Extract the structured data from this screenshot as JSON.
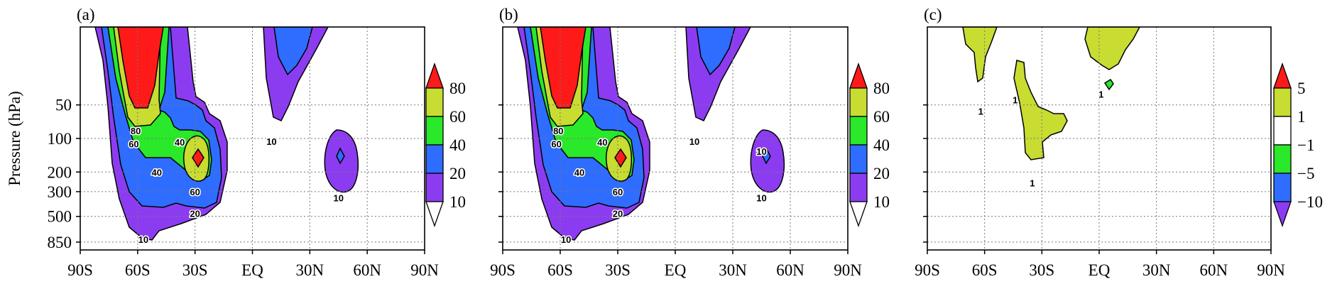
{
  "figure": {
    "ylabel": "Pressure (hPa)"
  },
  "chart_data": [
    {
      "type": "contour",
      "panel_label": "(a)",
      "xlabel": "",
      "ylabel": "Pressure (hPa)",
      "x_ticks": [
        "90S",
        "60S",
        "30S",
        "EQ",
        "30N",
        "60N",
        "90N"
      ],
      "x_range": [
        -90,
        90
      ],
      "y_ticks": [
        50,
        100,
        200,
        300,
        500,
        850
      ],
      "y_scale": "log",
      "y_range": [
        10,
        1000
      ],
      "grid": true,
      "colorbar": {
        "levels": [
          "80",
          "60",
          "40",
          "20",
          "10"
        ],
        "colors": [
          "#ff1a1a",
          "#c8dc32",
          "#2ae82a",
          "#2e6dff",
          "#8c3cf0",
          "#ffffff"
        ],
        "extend": "both"
      },
      "contour_labels": [
        {
          "text": "80",
          "lat": -61,
          "p": 85
        },
        {
          "text": "60",
          "lat": -62,
          "p": 112
        },
        {
          "text": "40",
          "lat": -38,
          "p": 108
        },
        {
          "text": "40",
          "lat": -50,
          "p": 200
        },
        {
          "text": "60",
          "lat": -30,
          "p": 300
        },
        {
          "text": "20",
          "lat": -30,
          "p": 470
        },
        {
          "text": "10",
          "lat": -57,
          "p": 800
        },
        {
          "text": "10",
          "lat": 10,
          "p": 106
        },
        {
          "text": "10",
          "lat": 45,
          "p": 340
        }
      ]
    },
    {
      "type": "contour",
      "panel_label": "(b)",
      "xlabel": "",
      "ylabel": "",
      "x_ticks": [
        "90S",
        "60S",
        "30S",
        "EQ",
        "30N",
        "60N",
        "90N"
      ],
      "x_range": [
        -90,
        90
      ],
      "y_ticks": [
        50,
        100,
        200,
        300,
        500,
        850
      ],
      "y_scale": "log",
      "y_range": [
        10,
        1000
      ],
      "grid": true,
      "colorbar": {
        "levels": [
          "80",
          "60",
          "40",
          "20",
          "10"
        ],
        "colors": [
          "#ff1a1a",
          "#c8dc32",
          "#2ae82a",
          "#2e6dff",
          "#8c3cf0",
          "#ffffff"
        ],
        "extend": "both"
      },
      "contour_labels": [
        {
          "text": "80",
          "lat": -61,
          "p": 85
        },
        {
          "text": "60",
          "lat": -62,
          "p": 112
        },
        {
          "text": "40",
          "lat": -38,
          "p": 108
        },
        {
          "text": "40",
          "lat": -50,
          "p": 200
        },
        {
          "text": "60",
          "lat": -30,
          "p": 300
        },
        {
          "text": "20",
          "lat": -30,
          "p": 470
        },
        {
          "text": "10",
          "lat": -57,
          "p": 800
        },
        {
          "text": "10",
          "lat": 10,
          "p": 106
        },
        {
          "text": "10",
          "lat": 45,
          "p": 130
        },
        {
          "text": "10",
          "lat": 45,
          "p": 340
        }
      ]
    },
    {
      "type": "contour",
      "panel_label": "(c)",
      "xlabel": "",
      "ylabel": "",
      "x_ticks": [
        "90S",
        "60S",
        "30S",
        "EQ",
        "30N",
        "60N",
        "90N"
      ],
      "x_range": [
        -90,
        90
      ],
      "y_ticks": [
        50,
        100,
        200,
        300,
        500,
        850
      ],
      "y_scale": "log",
      "y_range": [
        10,
        1000
      ],
      "grid": true,
      "colorbar": {
        "levels": [
          "5",
          "1",
          "−1",
          "−5",
          "−10"
        ],
        "colors": [
          "#ff1a1a",
          "#c8dc32",
          "#ffffff",
          "#2ae82a",
          "#2e6dff",
          "#8c3cf0"
        ],
        "extend": "both"
      },
      "contour_labels": [
        {
          "text": "1",
          "lat": -62,
          "p": 57
        },
        {
          "text": "1",
          "lat": -44,
          "p": 45
        },
        {
          "text": "1",
          "lat": -35,
          "p": 250
        },
        {
          "text": "1",
          "lat": 1,
          "p": 40
        }
      ]
    }
  ]
}
